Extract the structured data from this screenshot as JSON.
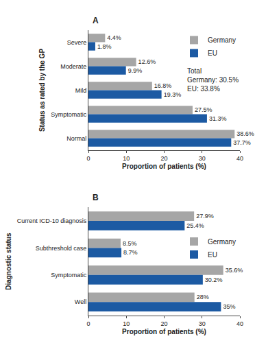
{
  "chart_data": [
    {
      "type": "bar",
      "orientation": "horizontal",
      "title": "A",
      "y_label": "Status as rated by the GP",
      "x_label": "Proportion of patients (%)",
      "categories": [
        "Severe",
        "Moderate",
        "Mild",
        "Symptomatic",
        "Normal"
      ],
      "series": [
        {
          "name": "Germany",
          "color": "#a6a6a6",
          "values": [
            4.4,
            12.6,
            16.8,
            27.5,
            38.6
          ],
          "value_labels": [
            "4.4%",
            "12.6%",
            "16.8%",
            "27.5%",
            "38.6%"
          ]
        },
        {
          "name": "EU",
          "color": "#1c5aa3",
          "values": [
            1.8,
            9.9,
            19.3,
            31.3,
            37.7
          ],
          "value_labels": [
            "1.8%",
            "9.9%",
            "19.3%",
            "31.3%",
            "37.7%"
          ]
        }
      ],
      "xlim": [
        0,
        40
      ],
      "xticks": [
        0,
        10,
        20,
        30,
        40
      ],
      "data_labels": true,
      "grid": false,
      "legend": "top right",
      "annotations": [
        "Total",
        "Germany: 30.5%",
        "EU: 33.8%"
      ]
    },
    {
      "type": "bar",
      "orientation": "horizontal",
      "title": "B",
      "y_label": "Diagnostic status",
      "x_label": "Proportion of patients (%)",
      "categories": [
        "Current ICD-10 diagnosis",
        "Subthreshold case",
        "Symptomatic",
        "Well"
      ],
      "series": [
        {
          "name": "Germany",
          "color": "#a6a6a6",
          "values": [
            27.9,
            8.5,
            35.6,
            28
          ],
          "value_labels": [
            "27.9%",
            "8.5%",
            "35.6%",
            "28%"
          ]
        },
        {
          "name": "EU",
          "color": "#1c5aa3",
          "values": [
            25.4,
            8.7,
            30.2,
            35
          ],
          "value_labels": [
            "25.4%",
            "8.7%",
            "30.2%",
            "35%"
          ]
        }
      ],
      "xlim": [
        0,
        40
      ],
      "xticks": [
        0,
        10,
        20,
        30,
        40
      ],
      "data_labels": true,
      "grid": false,
      "legend": "center right"
    }
  ]
}
